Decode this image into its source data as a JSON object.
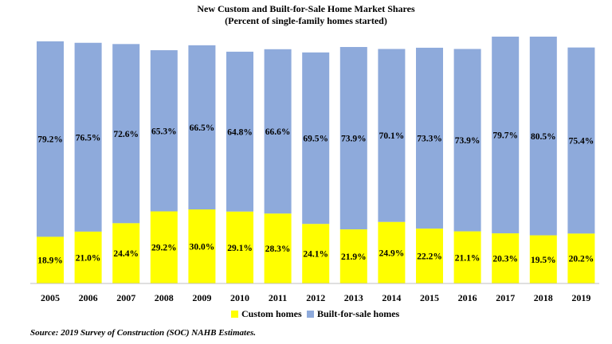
{
  "title": {
    "line1": "New Custom and Built-for-Sale Home Market Shares",
    "line2": "(Percent of single-family homes started)"
  },
  "source": "Source: 2019 Survey of Construction (SOC) NAHB Estimates.",
  "colors": {
    "custom": "#ffff00",
    "built_for_sale": "#8eaadb"
  },
  "chart_data": {
    "type": "bar",
    "stacked": true,
    "categories": [
      "2005",
      "2006",
      "2007",
      "2008",
      "2009",
      "2010",
      "2011",
      "2012",
      "2013",
      "2014",
      "2015",
      "2016",
      "2017",
      "2018",
      "2019"
    ],
    "series": [
      {
        "name": "Custom homes",
        "values": [
          18.9,
          21.0,
          24.4,
          29.2,
          30.0,
          29.1,
          28.3,
          24.1,
          21.9,
          24.9,
          22.2,
          21.1,
          20.3,
          19.5,
          20.2
        ],
        "labels": [
          "18.9%",
          "21.0%",
          "24.4%",
          "29.2%",
          "30.0%",
          "29.1%",
          "28.3%",
          "24.1%",
          "21.9%",
          "24.9%",
          "22.2%",
          "21.1%",
          "20.3%",
          "19.5%",
          "20.2%"
        ]
      },
      {
        "name": "Built-for-sale homes",
        "values": [
          79.2,
          76.5,
          72.6,
          65.3,
          66.5,
          64.8,
          66.6,
          69.5,
          73.9,
          70.1,
          73.3,
          73.9,
          79.7,
          80.5,
          75.4
        ],
        "labels": [
          "79.2%",
          "76.5%",
          "72.6%",
          "65.3%",
          "66.5%",
          "64.8%",
          "66.6%",
          "69.5%",
          "73.9%",
          "70.1%",
          "73.3%",
          "73.9%",
          "79.7%",
          "80.5%",
          "75.4%"
        ]
      }
    ],
    "ylim": [
      0,
      100
    ],
    "grid": false,
    "legend": "bottom"
  }
}
